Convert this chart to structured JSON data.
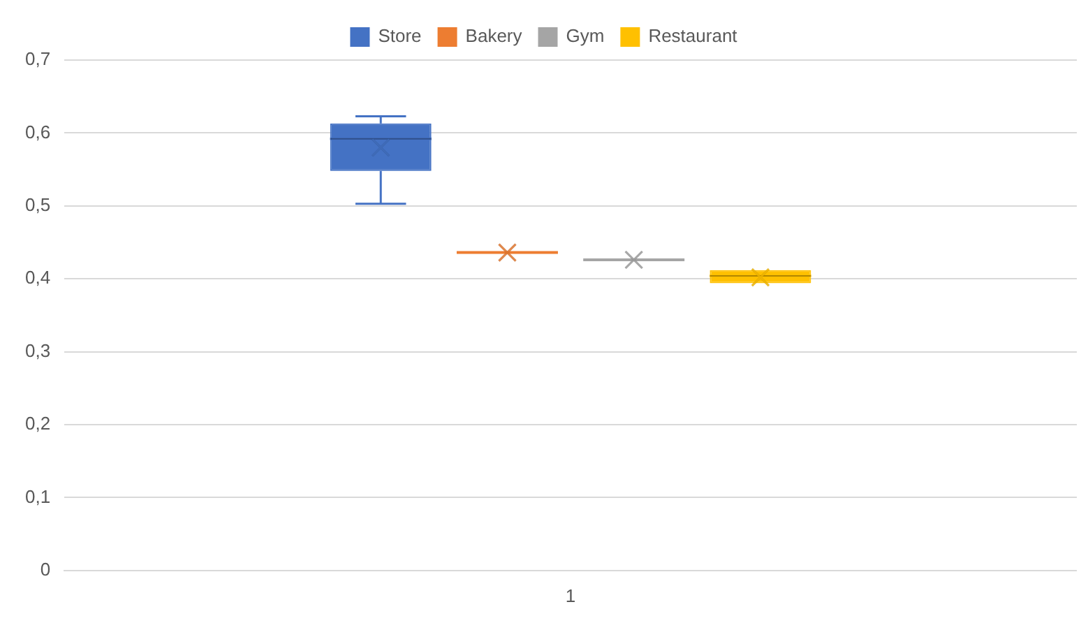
{
  "chart_data": {
    "type": "box",
    "categories": [
      "1"
    ],
    "legend": "top",
    "grid": "y",
    "marker": "cross",
    "ylim": [
      0,
      0.7
    ],
    "yticks": [
      0,
      {
        "value": 0.1,
        "label": "0,1"
      },
      {
        "value": 0.2,
        "label": "0,2"
      },
      {
        "value": 0.3,
        "label": "0,3"
      },
      {
        "value": 0.4,
        "label": "0,4"
      },
      {
        "value": 0.5,
        "label": "0,5"
      },
      {
        "value": 0.6,
        "label": "0,6"
      },
      {
        "value": 0.7,
        "label": "0,7"
      }
    ],
    "series": [
      {
        "name": "Store",
        "color": "#4472c4",
        "boxes": [
          {
            "low": 0.503,
            "q1": 0.548,
            "median": 0.592,
            "q3": 0.613,
            "high": 0.623,
            "mean": 0.58
          }
        ]
      },
      {
        "name": "Bakery",
        "color": "#ed7d31",
        "boxes": [
          {
            "low": 0.436,
            "q1": 0.436,
            "median": 0.436,
            "q3": 0.436,
            "high": 0.436,
            "mean": 0.436
          }
        ]
      },
      {
        "name": "Gym",
        "color": "#a5a5a5",
        "boxes": [
          {
            "low": 0.426,
            "q1": 0.426,
            "median": 0.426,
            "q3": 0.426,
            "high": 0.426,
            "mean": 0.426
          }
        ]
      },
      {
        "name": "Restaurant",
        "color": "#ffc000",
        "boxes": [
          {
            "low": 0.394,
            "q1": 0.394,
            "median": 0.404,
            "q3": 0.412,
            "high": 0.412,
            "mean": 0.402
          }
        ]
      }
    ]
  }
}
